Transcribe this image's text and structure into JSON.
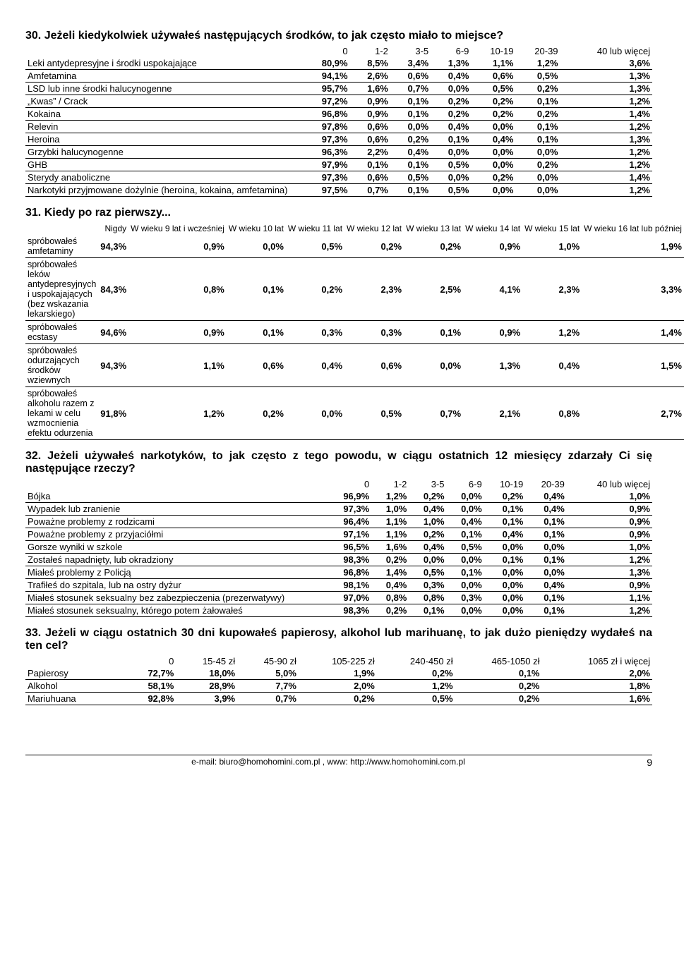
{
  "q30": {
    "title": "30. Jeżeli kiedykolwiek używałeś następujących środków, to jak często miało to miejsce?",
    "headers": [
      "0",
      "1-2",
      "3-5",
      "6-9",
      "10-19",
      "20-39",
      "40 lub więcej"
    ],
    "rows": [
      {
        "label": "Leki antydepresyjne i środki uspokajające",
        "v": [
          "80,9%",
          "8,5%",
          "3,4%",
          "1,3%",
          "1,1%",
          "1,2%",
          "3,6%"
        ]
      },
      {
        "label": "Amfetamina",
        "v": [
          "94,1%",
          "2,6%",
          "0,6%",
          "0,4%",
          "0,6%",
          "0,5%",
          "1,3%"
        ]
      },
      {
        "label": "LSD lub inne środki halucynogenne",
        "v": [
          "95,7%",
          "1,6%",
          "0,7%",
          "0,0%",
          "0,5%",
          "0,2%",
          "1,3%"
        ]
      },
      {
        "label": "„Kwas” / Crack",
        "v": [
          "97,2%",
          "0,9%",
          "0,1%",
          "0,2%",
          "0,2%",
          "0,1%",
          "1,2%"
        ]
      },
      {
        "label": "Kokaina",
        "v": [
          "96,8%",
          "0,9%",
          "0,1%",
          "0,2%",
          "0,2%",
          "0,2%",
          "1,4%"
        ]
      },
      {
        "label": "Relevin",
        "v": [
          "97,8%",
          "0,6%",
          "0,0%",
          "0,4%",
          "0,0%",
          "0,1%",
          "1,2%"
        ]
      },
      {
        "label": "Heroina",
        "v": [
          "97,3%",
          "0,6%",
          "0,2%",
          "0,1%",
          "0,4%",
          "0,1%",
          "1,3%"
        ]
      },
      {
        "label": "Grzybki halucynogenne",
        "v": [
          "96,3%",
          "2,2%",
          "0,4%",
          "0,0%",
          "0,0%",
          "0,0%",
          "1,2%"
        ]
      },
      {
        "label": "GHB",
        "v": [
          "97,9%",
          "0,1%",
          "0,1%",
          "0,5%",
          "0,0%",
          "0,2%",
          "1,2%"
        ]
      },
      {
        "label": "Sterydy anaboliczne",
        "v": [
          "97,3%",
          "0,6%",
          "0,5%",
          "0,0%",
          "0,2%",
          "0,0%",
          "1,4%"
        ]
      },
      {
        "label": "Narkotyki przyjmowane dożylnie (heroina, kokaina, amfetamina)",
        "v": [
          "97,5%",
          "0,7%",
          "0,1%",
          "0,5%",
          "0,0%",
          "0,0%",
          "1,2%"
        ]
      }
    ]
  },
  "q31": {
    "title": "31. Kiedy po raz pierwszy...",
    "headers": [
      "Nigdy",
      "W wieku 9 lat i wcześniej",
      "W wieku 10 lat",
      "W wieku 11 lat",
      "W wieku 12 lat",
      "W wieku 13 lat",
      "W wieku 14 lat",
      "W wieku 15 lat",
      "W wieku 16 lat lub później"
    ],
    "rows": [
      {
        "label": "spróbowałeś amfetaminy",
        "v": [
          "94,3%",
          "0,9%",
          "0,0%",
          "0,5%",
          "0,2%",
          "0,2%",
          "0,9%",
          "1,0%",
          "1,9%"
        ]
      },
      {
        "label": "spróbowałeś leków antydepresyjnych i uspokajających (bez wskazania lekarskiego)",
        "v": [
          "84,3%",
          "0,8%",
          "0,1%",
          "0,2%",
          "2,3%",
          "2,5%",
          "4,1%",
          "2,3%",
          "3,3%"
        ]
      },
      {
        "label": "spróbowałeś ecstasy",
        "v": [
          "94,6%",
          "0,9%",
          "0,1%",
          "0,3%",
          "0,3%",
          "0,1%",
          "0,9%",
          "1,2%",
          "1,4%"
        ]
      },
      {
        "label": "spróbowałeś odurzających środków wziewnych",
        "v": [
          "94,3%",
          "1,1%",
          "0,6%",
          "0,4%",
          "0,6%",
          "0,0%",
          "1,3%",
          "0,4%",
          "1,5%"
        ]
      },
      {
        "label": "spróbowałeś alkoholu razem z lekami w celu wzmocnienia efektu odurzenia",
        "v": [
          "91,8%",
          "1,2%",
          "0,2%",
          "0,0%",
          "0,5%",
          "0,7%",
          "2,1%",
          "0,8%",
          "2,7%"
        ]
      }
    ]
  },
  "q32": {
    "title": "32. Jeżeli używałeś narkotyków, to jak często z tego powodu, w ciągu ostatnich 12 miesięcy zdarzały Ci się następujące rzeczy?",
    "headers": [
      "0",
      "1-2",
      "3-5",
      "6-9",
      "10-19",
      "20-39",
      "40 lub więcej"
    ],
    "rows": [
      {
        "label": "Bójka",
        "v": [
          "96,9%",
          "1,2%",
          "0,2%",
          "0,0%",
          "0,2%",
          "0,4%",
          "1,0%"
        ]
      },
      {
        "label": "Wypadek lub zranienie",
        "v": [
          "97,3%",
          "1,0%",
          "0,4%",
          "0,0%",
          "0,1%",
          "0,4%",
          "0,9%"
        ]
      },
      {
        "label": "Poważne problemy z rodzicami",
        "v": [
          "96,4%",
          "1,1%",
          "1,0%",
          "0,4%",
          "0,1%",
          "0,1%",
          "0,9%"
        ]
      },
      {
        "label": "Poważne problemy z przyjaciółmi",
        "v": [
          "97,1%",
          "1,1%",
          "0,2%",
          "0,1%",
          "0,4%",
          "0,1%",
          "0,9%"
        ]
      },
      {
        "label": "Gorsze wyniki w szkole",
        "v": [
          "96,5%",
          "1,6%",
          "0,4%",
          "0,5%",
          "0,0%",
          "0,0%",
          "1,0%"
        ]
      },
      {
        "label": "Zostałeś napadnięty, lub okradziony",
        "v": [
          "98,3%",
          "0,2%",
          "0,0%",
          "0,0%",
          "0,1%",
          "0,1%",
          "1,2%"
        ]
      },
      {
        "label": "Miałeś problemy z Policją",
        "v": [
          "96,8%",
          "1,4%",
          "0,5%",
          "0,1%",
          "0,0%",
          "0,0%",
          "1,3%"
        ]
      },
      {
        "label": "Trafiłeś do szpitala, lub na ostry dyżur",
        "v": [
          "98,1%",
          "0,4%",
          "0,3%",
          "0,0%",
          "0,0%",
          "0,4%",
          "0,9%"
        ]
      },
      {
        "label": "Miałeś stosunek seksualny bez zabezpieczenia (prezerwatywy)",
        "v": [
          "97,0%",
          "0,8%",
          "0,8%",
          "0,3%",
          "0,0%",
          "0,1%",
          "1,1%"
        ]
      },
      {
        "label": "Miałeś stosunek seksualny, którego potem żałowałeś",
        "v": [
          "98,3%",
          "0,2%",
          "0,1%",
          "0,0%",
          "0,0%",
          "0,1%",
          "1,2%"
        ]
      }
    ]
  },
  "q33": {
    "title": "33. Jeżeli w ciągu ostatnich 30 dni kupowałeś papierosy, alkohol lub marihuanę, to jak dużo pieniędzy wydałeś na ten cel?",
    "headers": [
      "0",
      "15-45 zł",
      "45-90 zł",
      "105-225 zł",
      "240-450 zł",
      "465-1050 zł",
      "1065 zł i więcej"
    ],
    "rows": [
      {
        "label": "Papierosy",
        "v": [
          "72,7%",
          "18,0%",
          "5,0%",
          "1,9%",
          "0,2%",
          "0,1%",
          "2,0%"
        ]
      },
      {
        "label": "Alkohol",
        "v": [
          "58,1%",
          "28,9%",
          "7,7%",
          "2,0%",
          "1,2%",
          "0,2%",
          "1,8%"
        ]
      },
      {
        "label": "Mariuhuana",
        "v": [
          "92,8%",
          "3,9%",
          "0,7%",
          "0,2%",
          "0,5%",
          "0,2%",
          "1,6%"
        ]
      }
    ]
  },
  "footer": {
    "text": "e-mail: biuro@homohomini.com.pl , www: http://www.homohomini.com.pl",
    "page": "9"
  }
}
